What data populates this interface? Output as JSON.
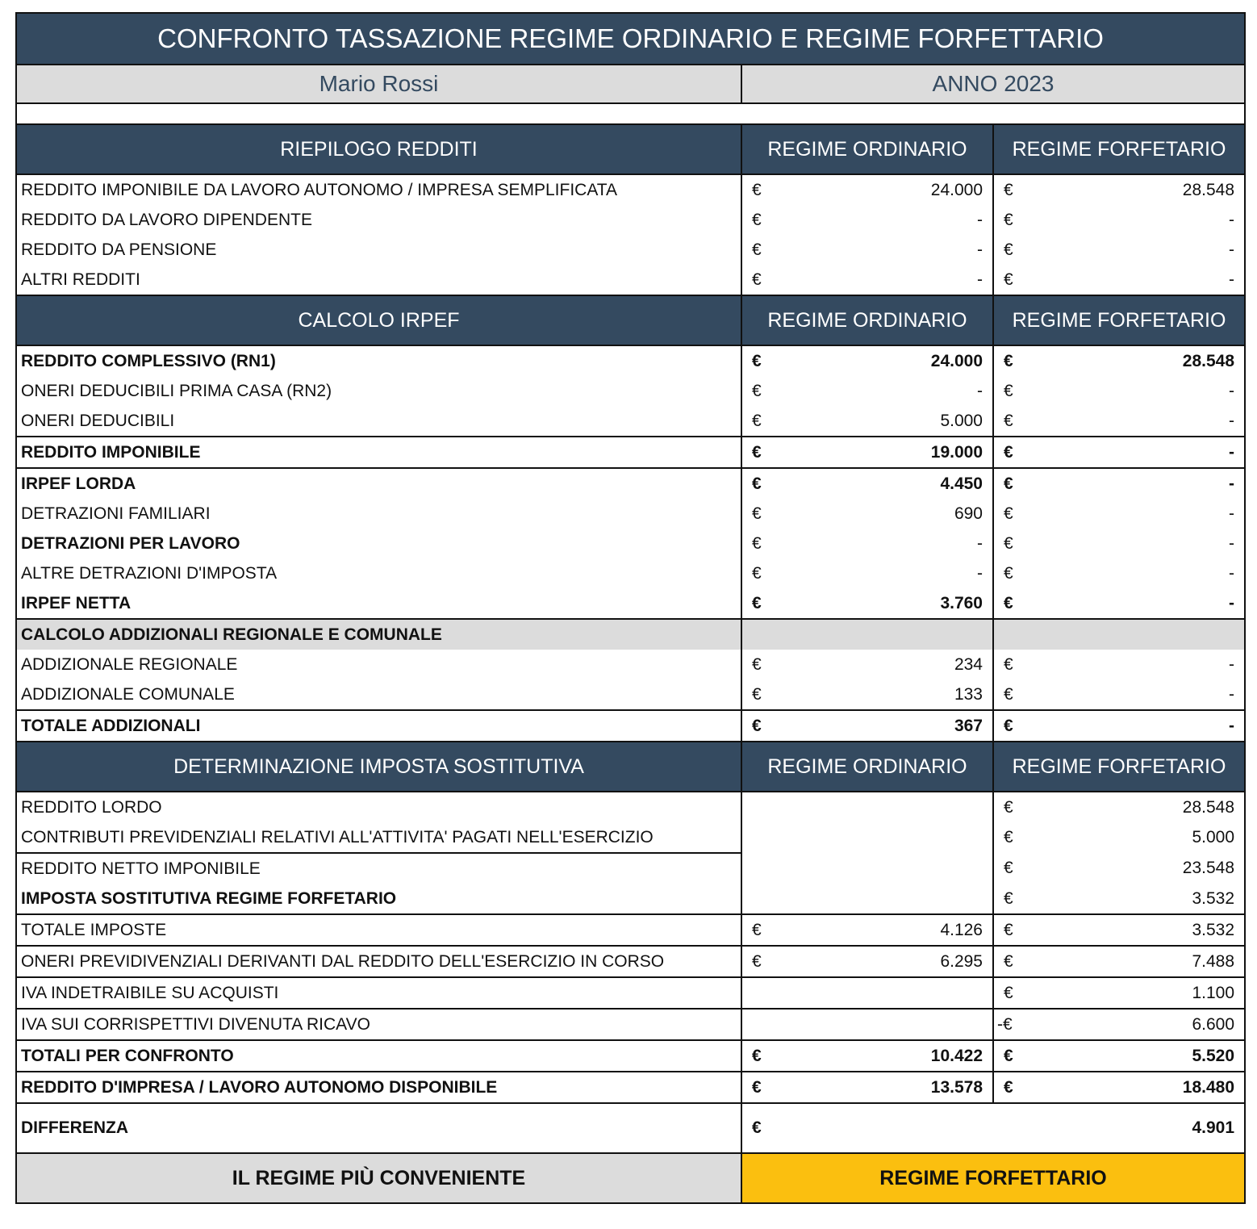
{
  "title": "CONFRONTO TASSAZIONE REGIME ORDINARIO E REGIME FORFETTARIO",
  "name": "Mario Rossi",
  "year": "ANNO 2023",
  "currency": "€",
  "neg_currency": "-€",
  "col_ordinario": "REGIME ORDINARIO",
  "col_forfetario": "REGIME FORFETARIO",
  "colors": {
    "navy": "#344a60",
    "grey": "#dcdcdc",
    "highlight": "#fbbf0f"
  },
  "sections": {
    "riepilogo": {
      "header": "RIEPILOGO REDDITI",
      "rows": [
        {
          "label": "REDDITO IMPONIBILE DA LAVORO AUTONOMO / IMPRESA SEMPLIFICATA",
          "ord": "24.000",
          "forf": "28.548"
        },
        {
          "label": "REDDITO DA LAVORO DIPENDENTE",
          "ord": "-",
          "forf": "-"
        },
        {
          "label": "REDDITO DA PENSIONE",
          "ord": "-",
          "forf": "-"
        },
        {
          "label": "ALTRI REDDITI",
          "ord": "-",
          "forf": "-"
        }
      ]
    },
    "irpef": {
      "header": "CALCOLO IRPEF",
      "rows": [
        {
          "label": "REDDITO COMPLESSIVO (RN1)",
          "ord": "24.000",
          "forf": "28.548"
        },
        {
          "label": "ONERI DEDUCIBILI PRIMA CASA (RN2)",
          "ord": "-",
          "forf": "-"
        },
        {
          "label": "ONERI DEDUCIBILI",
          "ord": "5.000",
          "forf": "-"
        },
        {
          "label": "REDDITO IMPONIBILE",
          "ord": "19.000",
          "forf": "-"
        },
        {
          "label": "IRPEF LORDA",
          "ord": "4.450",
          "forf": "-"
        },
        {
          "label": "DETRAZIONI FAMILIARI",
          "ord": "690",
          "forf": "-"
        },
        {
          "label": "DETRAZIONI PER LAVORO",
          "ord": "-",
          "forf": "-"
        },
        {
          "label": "ALTRE DETRAZIONI D'IMPOSTA",
          "ord": "-",
          "forf": "-"
        },
        {
          "label": "IRPEF NETTA",
          "ord": "3.760",
          "forf": "-"
        }
      ]
    },
    "addizionali": {
      "header": "CALCOLO ADDIZIONALI REGIONALE E COMUNALE",
      "rows": [
        {
          "label": "ADDIZIONALE REGIONALE",
          "ord": "234",
          "forf": "-"
        },
        {
          "label": "ADDIZIONALE COMUNALE",
          "ord": "133",
          "forf": "-"
        },
        {
          "label": "TOTALE ADDIZIONALI",
          "ord": "367",
          "forf": "-"
        }
      ]
    },
    "sostitutiva": {
      "header": "DETERMINAZIONE IMPOSTA SOSTITUTIVA",
      "rows": [
        {
          "label": "REDDITO LORDO",
          "forf": "28.548"
        },
        {
          "label": "CONTRIBUTI PREVIDENZIALI RELATIVI ALL'ATTIVITA' PAGATI NELL'ESERCIZIO",
          "forf": "5.000"
        },
        {
          "label": "REDDITO NETTO IMPONIBILE",
          "forf": "23.548"
        },
        {
          "label": "IMPOSTA SOSTITUTIVA REGIME FORFETARIO",
          "forf": "3.532"
        },
        {
          "label": "TOTALE IMPOSTE",
          "ord": "4.126",
          "forf": "3.532"
        },
        {
          "label": "ONERI PREVIDIVENZIALI DERIVANTI DAL REDDITO DELL'ESERCIZIO IN CORSO",
          "ord": "6.295",
          "forf": "7.488"
        },
        {
          "label": "IVA INDETRAIBILE SU ACQUISTI",
          "forf": "1.100"
        },
        {
          "label": "IVA SUI CORRISPETTIVI DIVENUTA RICAVO",
          "forf": "6.600"
        },
        {
          "label": "TOTALI PER CONFRONTO",
          "ord": "10.422",
          "forf": "5.520"
        },
        {
          "label": "REDDITO D'IMPRESA / LAVORO AUTONOMO DISPONIBILE",
          "ord": "13.578",
          "forf": "18.480"
        }
      ]
    }
  },
  "differenza": {
    "label": "DIFFERENZA",
    "value": "4.901"
  },
  "conveniente": {
    "label": "IL REGIME PIÙ CONVENIENTE",
    "value": "REGIME FORFETTARIO"
  }
}
